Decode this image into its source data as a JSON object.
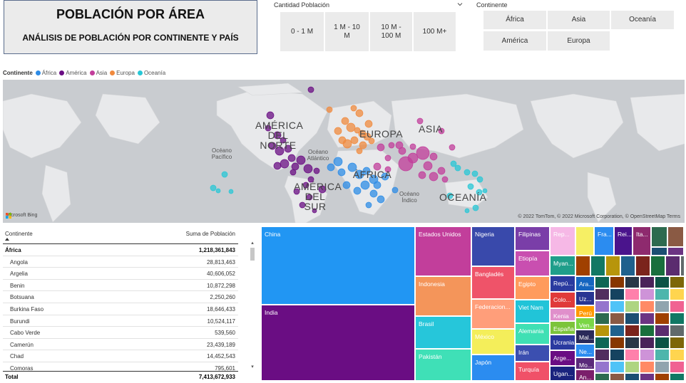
{
  "header": {
    "title": "POBLACIÓN POR ÁREA",
    "subtitle": "ANÁLISIS DE POBLACIÓN POR CONTINENTE Y PAÍS"
  },
  "slicer_population": {
    "title": "Cantidad Población",
    "options": [
      "0 - 1 M",
      "1 M - 10 M",
      "10 M - 100 M",
      "100 M+"
    ]
  },
  "slicer_continent": {
    "title": "Continente",
    "options": [
      "África",
      "Asia",
      "Oceanía",
      "América",
      "Europa"
    ]
  },
  "legend": {
    "label": "Continente",
    "items": [
      {
        "name": "África",
        "color": "#2e8ce6"
      },
      {
        "name": "América",
        "color": "#6a0d83"
      },
      {
        "name": "Asia",
        "color": "#c23e9b"
      },
      {
        "name": "Europa",
        "color": "#f08a3e"
      },
      {
        "name": "Oceanía",
        "color": "#28c7d6"
      }
    ]
  },
  "map": {
    "labels": {
      "north_america": "AMÉRICA DEL NORTE",
      "south_america": "AMÉRICA DEL SUR",
      "europe": "EUROPA",
      "asia": "ASIA",
      "africa": "ÁFRICA",
      "oceania": "OCEANÍA"
    },
    "oceans": {
      "pacific": "Océano Pacífico",
      "atlantic": "Océano Atlántico",
      "indian": "Océano Índico"
    },
    "bing": "Microsoft Bing",
    "copyright": "© 2022 TomTom, © 2022 Microsoft Corporation, © OpenStreetMap  Terms"
  },
  "table": {
    "col_continent": "Continente",
    "col_population": "Suma de Población",
    "group": {
      "name": "África",
      "value": "1,218,361,843"
    },
    "rows": [
      {
        "name": "Angola",
        "value": "28,813,463"
      },
      {
        "name": "Argelia",
        "value": "40,606,052"
      },
      {
        "name": "Benin",
        "value": "10,872,298"
      },
      {
        "name": "Botsuana",
        "value": "2,250,260"
      },
      {
        "name": "Burkina Faso",
        "value": "18,646,433"
      },
      {
        "name": "Burundi",
        "value": "10,524,117"
      },
      {
        "name": "Cabo Verde",
        "value": "539,560"
      },
      {
        "name": "Camerún",
        "value": "23,439,189"
      },
      {
        "name": "Chad",
        "value": "14,452,543"
      },
      {
        "name": "Comoras",
        "value": "795,601"
      }
    ],
    "total_label": "Total",
    "total_value": "7,413,672,933"
  },
  "treemap": {
    "tiles": [
      {
        "label": "China",
        "color": "#2196f3"
      },
      {
        "label": "India",
        "color": "#6a0d83"
      },
      {
        "label": "Estados Unidos",
        "color": "#c23e9b"
      },
      {
        "label": "Indonesia",
        "color": "#f4955a"
      },
      {
        "label": "Brasil",
        "color": "#26c6da"
      },
      {
        "label": "Pakistán",
        "color": "#3fe0b7"
      },
      {
        "label": "Nigeria",
        "color": "#3949ab"
      },
      {
        "label": "Bangladés",
        "color": "#ef5369"
      },
      {
        "label": "Federacion...",
        "color": "#ff9e7a"
      },
      {
        "label": "México",
        "color": "#f4ee5a"
      },
      {
        "label": "Japón",
        "color": "#2b8cf0"
      },
      {
        "label": "Filipinas",
        "color": "#7a3ea8"
      },
      {
        "label": "Etiopía",
        "color": "#c94fb0"
      },
      {
        "label": "Egipto",
        "color": "#ff9b5c"
      },
      {
        "label": "Viet Nam",
        "color": "#21c4d8"
      },
      {
        "label": "Alemania",
        "color": "#3fe0b4"
      },
      {
        "label": "Irán",
        "color": "#3b4fb0"
      },
      {
        "label": "Turquía",
        "color": "#f05168"
      },
      {
        "label": "Rep...",
        "color": "#f6b8e6"
      },
      {
        "label": "Myan...",
        "color": "#1f9e8a"
      },
      {
        "label": "Repú...",
        "color": "#2a3aa0"
      },
      {
        "label": "Colo...",
        "color": "#e03a3a"
      },
      {
        "label": "Kenia",
        "color": "#e08fcb"
      },
      {
        "label": "España",
        "color": "#7cc43a"
      },
      {
        "label": "Ucrania",
        "color": "#2a3aa0"
      },
      {
        "label": "Arge...",
        "color": "#6a0d83"
      },
      {
        "label": "Ugan...",
        "color": "#1a237e"
      },
      {
        "label": "",
        "color": "#f6ef64"
      },
      {
        "label": "Fra...",
        "color": "#2b8cf0"
      },
      {
        "label": "Rei...",
        "color": "#4a148c"
      },
      {
        "label": "Ita...",
        "color": "#8e2a6e"
      },
      {
        "label": "Ara...",
        "color": "#1565c0"
      },
      {
        "label": "Uz...",
        "color": "#283593"
      },
      {
        "label": "Perú",
        "color": "#ff9800"
      },
      {
        "label": "Ven...",
        "color": "#7ad645"
      },
      {
        "label": "Mal...",
        "color": "#2a2a5a"
      },
      {
        "label": "Ne...",
        "color": "#2b8cf0"
      },
      {
        "label": "Mo...",
        "color": "#5a2a7a"
      },
      {
        "label": "An...",
        "color": "#7b1f6b"
      }
    ]
  }
}
